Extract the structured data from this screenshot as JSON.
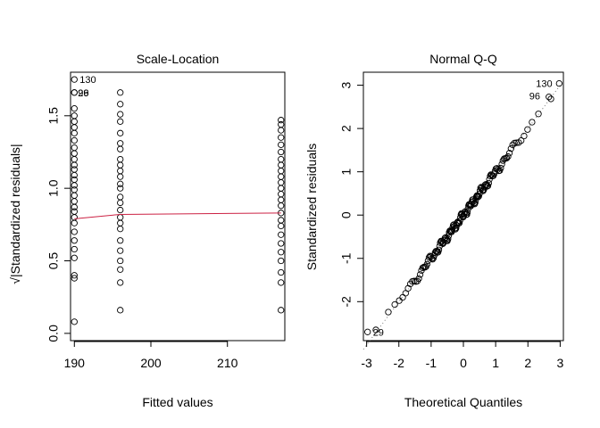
{
  "chart_data": [
    {
      "type": "scatter",
      "title": "Scale-Location",
      "xlabel": "Fitted values",
      "ylabel": "√|Standardized residuals|",
      "xlim": [
        189.5,
        217.5
      ],
      "ylim": [
        -0.05,
        1.8
      ],
      "x_ticks": [
        "190",
        "200",
        "210"
      ],
      "x_tick_values": [
        190,
        200,
        210
      ],
      "y_ticks": [
        "0.0",
        "0.5",
        "1.0",
        "1.5"
      ],
      "y_tick_values": [
        0,
        0.5,
        1.0,
        1.5
      ],
      "series": [
        {
          "x": 190,
          "values": [
            1.75,
            1.66,
            1.66,
            1.55,
            1.5,
            1.46,
            1.42,
            1.38,
            1.33,
            1.28,
            1.24,
            1.2,
            1.16,
            1.13,
            1.09,
            1.06,
            1.02,
            0.99,
            0.95,
            0.91,
            0.87,
            0.84,
            0.8,
            0.76,
            0.7,
            0.64,
            0.58,
            0.52,
            0.4,
            0.38,
            0.08
          ]
        },
        {
          "x": 196,
          "values": [
            1.66,
            1.58,
            1.51,
            1.46,
            1.38,
            1.31,
            1.27,
            1.2,
            1.16,
            1.12,
            1.08,
            1.03,
            1.0,
            0.94,
            0.9,
            0.85,
            0.8,
            0.76,
            0.72,
            0.64,
            0.57,
            0.5,
            0.44,
            0.35,
            0.16
          ]
        },
        {
          "x": 217,
          "values": [
            1.47,
            1.44,
            1.4,
            1.35,
            1.3,
            1.25,
            1.2,
            1.16,
            1.12,
            1.08,
            1.04,
            1.0,
            0.96,
            0.92,
            0.88,
            0.83,
            0.78,
            0.74,
            0.68,
            0.62,
            0.56,
            0.5,
            0.42,
            0.35,
            0.16
          ]
        }
      ],
      "smoother": {
        "x": [
          190,
          196,
          217
        ],
        "values": [
          0.79,
          0.82,
          0.83
        ],
        "color": "#cc2244"
      },
      "annotations": [
        {
          "text": "130",
          "x": 190,
          "y": 1.75
        },
        {
          "text": "96",
          "x": 190,
          "y": 1.66
        },
        {
          "text": "29",
          "x": 190,
          "y": 1.66
        }
      ]
    },
    {
      "type": "scatter",
      "title": "Normal Q-Q",
      "xlabel": "Theoretical Quantiles",
      "ylabel": "Standardized residuals",
      "xlim": [
        -3.1,
        3.1
      ],
      "ylim": [
        -2.9,
        3.3
      ],
      "x_ticks": [
        "-3",
        "-2",
        "-1",
        "0",
        "1",
        "2",
        "3"
      ],
      "x_tick_values": [
        -3,
        -2,
        -1,
        0,
        1,
        2,
        3
      ],
      "y_ticks": [
        "-2",
        "-1",
        "0",
        "1",
        "2",
        "3"
      ],
      "y_tick_values": [
        -2,
        -1,
        0,
        1,
        2,
        3
      ],
      "n_points": 150,
      "qq_reference_line": {
        "slope": 1.0,
        "intercept": 0.0
      },
      "highlighted": [
        {
          "label": "130",
          "x": 2.97,
          "y": 3.04
        },
        {
          "label": "96",
          "x": 2.65,
          "y": 2.73
        },
        {
          "label": "29",
          "x": -2.97,
          "y": -2.7
        }
      ],
      "annotations": [
        {
          "text": "130",
          "x": 2.97,
          "y": 3.04
        },
        {
          "text": "96",
          "x": 2.65,
          "y": 2.73
        },
        {
          "text": "29",
          "x": -2.97,
          "y": -2.7
        }
      ]
    }
  ]
}
